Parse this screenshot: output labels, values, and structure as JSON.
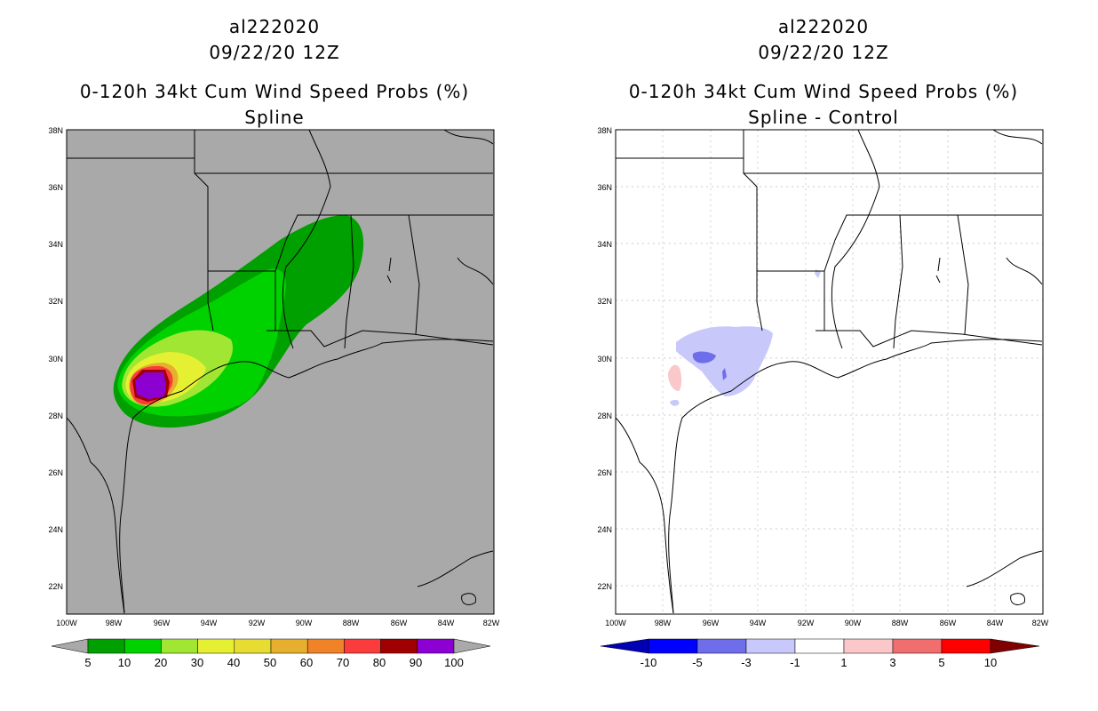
{
  "colors": {
    "land_gray": "#a9a9a9",
    "prob_5": "#00a000",
    "prob_10": "#00d200",
    "prob_20": "#a0e632",
    "prob_30": "#e6f032",
    "prob_40": "#e6dc32",
    "prob_50": "#e6af2d",
    "prob_60": "#f08228",
    "prob_70": "#fa3c3c",
    "prob_80": "#a00000",
    "prob_90": "#8c00d2",
    "diff_neg3": "#c8c8fa",
    "diff_neg5": "#6e6eea",
    "diff_pos1": "#fac8c8"
  },
  "left_panel": {
    "storm_id": "al222020",
    "date": "09/22/20 12Z",
    "product": "0-120h 34kt Cum Wind Speed Probs (%)",
    "method": "Spline",
    "colorbar_labels": [
      "5",
      "10",
      "20",
      "30",
      "40",
      "50",
      "60",
      "70",
      "80",
      "90",
      "100"
    ],
    "colorbar_colors": [
      "#00a000",
      "#00d200",
      "#a0e632",
      "#e6f032",
      "#e6dc32",
      "#e6af2d",
      "#f08228",
      "#fa3c3c",
      "#a00000",
      "#8c00d2"
    ]
  },
  "right_panel": {
    "storm_id": "al222020",
    "date": "09/22/20 12Z",
    "product": "0-120h 34kt Cum Wind Speed Probs (%)",
    "method": "Spline - Control",
    "colorbar_labels": [
      "-10",
      "-5",
      "-3",
      "-1",
      "1",
      "3",
      "5",
      "10"
    ],
    "colorbar_colors": [
      "#0000b4",
      "#0000ff",
      "#6e6eea",
      "#c8c8fa",
      "#ffffff",
      "#fac8c8",
      "#f06e6e",
      "#ff0000",
      "#a00000"
    ]
  },
  "axes": {
    "lat_labels": [
      "38N",
      "36N",
      "34N",
      "32N",
      "30N",
      "28N",
      "26N",
      "24N",
      "22N"
    ],
    "lon_labels": [
      "100W",
      "98W",
      "96W",
      "94W",
      "92W",
      "90W",
      "88W",
      "86W",
      "84W",
      "82W"
    ]
  }
}
